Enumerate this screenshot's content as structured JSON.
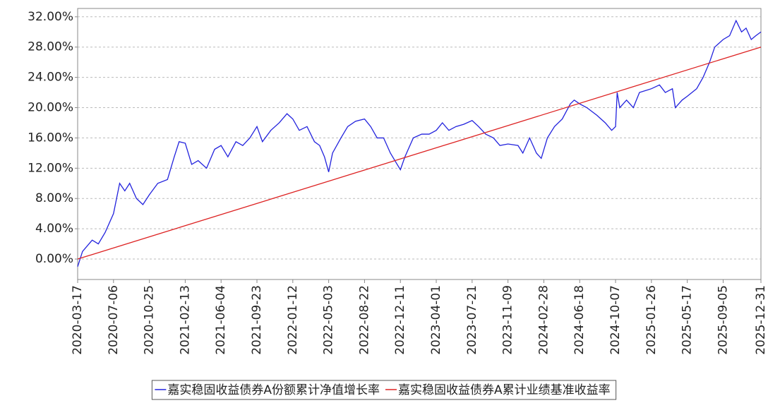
{
  "chart_data": {
    "type": "line",
    "xlim": [
      "2020-03-17",
      "2025-12-31"
    ],
    "xticks": [
      "2020-03-17",
      "2020-07-06",
      "2020-10-25",
      "2021-02-13",
      "2021-06-04",
      "2021-09-23",
      "2022-01-12",
      "2022-05-03",
      "2022-08-22",
      "2022-12-11",
      "2023-04-01",
      "2023-07-21",
      "2023-11-09",
      "2024-02-28",
      "2024-06-18",
      "2024-10-07",
      "2025-01-26",
      "2025-05-17",
      "2025-09-05",
      "2025-12-31"
    ],
    "ylim": [
      -2.7,
      33.1
    ],
    "yticks": [
      {
        "value": 0,
        "label": "0.00%"
      },
      {
        "value": 4,
        "label": "4.00%"
      },
      {
        "value": 8,
        "label": "8.00%"
      },
      {
        "value": 12,
        "label": "12.00%"
      },
      {
        "value": 16,
        "label": "16.00%"
      },
      {
        "value": 20,
        "label": "20.00%"
      },
      {
        "value": 24,
        "label": "24.00%"
      },
      {
        "value": 28,
        "label": "28.00%"
      },
      {
        "value": 32,
        "label": "32.00%"
      }
    ],
    "grid": true,
    "legend": "bottom",
    "series": [
      {
        "name": "嘉实稳固收益债券A份额累计净值增长率",
        "color": "#2222dd",
        "x": [
          "2020-03-17",
          "2020-04-01",
          "2020-05-01",
          "2020-05-20",
          "2020-06-10",
          "2020-07-06",
          "2020-07-25",
          "2020-08-10",
          "2020-08-25",
          "2020-09-15",
          "2020-10-05",
          "2020-10-25",
          "2020-11-20",
          "2020-12-20",
          "2021-01-10",
          "2021-01-25",
          "2021-02-13",
          "2021-03-05",
          "2021-03-25",
          "2021-04-20",
          "2021-05-15",
          "2021-06-04",
          "2021-06-25",
          "2021-07-20",
          "2021-08-10",
          "2021-09-01",
          "2021-09-23",
          "2021-10-10",
          "2021-11-05",
          "2021-12-01",
          "2021-12-25",
          "2022-01-12",
          "2022-02-01",
          "2022-02-25",
          "2022-03-20",
          "2022-04-05",
          "2022-04-20",
          "2022-05-03",
          "2022-05-15",
          "2022-06-10",
          "2022-07-01",
          "2022-07-25",
          "2022-08-22",
          "2022-09-10",
          "2022-09-30",
          "2022-10-20",
          "2022-11-10",
          "2022-12-01",
          "2022-12-11",
          "2022-12-25",
          "2023-01-20",
          "2023-02-15",
          "2023-03-10",
          "2023-04-01",
          "2023-04-20",
          "2023-05-10",
          "2023-06-01",
          "2023-06-25",
          "2023-07-21",
          "2023-08-10",
          "2023-09-01",
          "2023-09-25",
          "2023-10-15",
          "2023-11-09",
          "2023-12-10",
          "2023-12-25",
          "2024-01-15",
          "2024-02-05",
          "2024-02-20",
          "2024-03-10",
          "2024-04-01",
          "2024-04-25",
          "2024-05-20",
          "2024-06-01",
          "2024-06-18",
          "2024-07-10",
          "2024-08-10",
          "2024-09-05",
          "2024-09-25",
          "2024-10-07",
          "2024-10-12",
          "2024-10-20",
          "2024-11-10",
          "2024-12-01",
          "2024-12-20",
          "2025-01-26",
          "2025-02-20",
          "2025-03-10",
          "2025-04-01",
          "2025-04-10",
          "2025-05-01",
          "2025-05-17",
          "2025-06-15",
          "2025-07-05",
          "2025-07-25",
          "2025-08-10",
          "2025-09-05",
          "2025-09-25",
          "2025-10-15",
          "2025-11-01",
          "2025-11-15",
          "2025-12-01",
          "2025-12-15",
          "2025-12-31"
        ],
        "values": [
          -1.0,
          1.0,
          2.5,
          2.0,
          3.5,
          6.0,
          10.0,
          9.0,
          10.0,
          8.0,
          7.2,
          8.5,
          10.0,
          10.5,
          13.5,
          15.5,
          15.3,
          12.5,
          13.0,
          12.0,
          14.5,
          15.0,
          13.5,
          15.5,
          15.0,
          16.0,
          17.5,
          15.5,
          17.0,
          18.0,
          19.2,
          18.5,
          17.0,
          17.5,
          15.5,
          15.0,
          13.5,
          11.5,
          14.0,
          16.0,
          17.5,
          18.2,
          18.5,
          17.5,
          16.0,
          16.0,
          14.0,
          12.5,
          11.8,
          13.5,
          16.0,
          16.5,
          16.5,
          17.0,
          18.0,
          17.0,
          17.5,
          17.8,
          18.3,
          17.5,
          16.5,
          16.0,
          15.0,
          15.2,
          15.0,
          14.0,
          16.0,
          14.0,
          13.3,
          16.0,
          17.5,
          18.5,
          20.5,
          21.0,
          20.5,
          20.0,
          19.0,
          18.0,
          17.0,
          17.5,
          22.0,
          20.0,
          21.0,
          20.0,
          22.0,
          22.5,
          23.0,
          22.0,
          22.5,
          20.0,
          21.0,
          21.5,
          22.5,
          24.0,
          26.0,
          28.0,
          29.0,
          29.5,
          31.5,
          30.0,
          30.5,
          29.0,
          29.5,
          30.0
        ]
      },
      {
        "name": "嘉实稳固收益债券A累计业绩基准收益率",
        "color": "#dd2222",
        "x": [
          "2020-03-17",
          "2025-12-31"
        ],
        "values": [
          0,
          28
        ]
      }
    ]
  }
}
